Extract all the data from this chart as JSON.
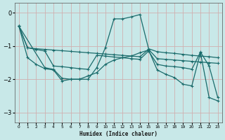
{
  "xlabel": "Humidex (Indice chaleur)",
  "bg_color": "#c8e8e8",
  "line_color": "#1a6b6b",
  "grid_color": "#b0d0d0",
  "xlim": [
    -0.5,
    23.5
  ],
  "ylim": [
    -3.3,
    0.3
  ],
  "yticks": [
    0,
    -1,
    -2,
    -3
  ],
  "xticks": [
    0,
    1,
    2,
    3,
    4,
    5,
    6,
    7,
    8,
    9,
    10,
    11,
    12,
    13,
    14,
    15,
    16,
    17,
    18,
    19,
    20,
    21,
    22,
    23
  ],
  "series1_x": [
    0,
    1,
    2,
    3,
    4,
    5,
    6,
    7,
    8,
    9,
    10,
    11,
    12,
    13,
    14,
    15,
    16,
    17,
    18,
    19,
    20,
    21,
    22,
    23
  ],
  "series1_y": [
    -0.4,
    -1.05,
    -1.08,
    -1.1,
    -1.12,
    -1.14,
    -1.16,
    -1.18,
    -1.2,
    -1.22,
    -1.24,
    -1.26,
    -1.28,
    -1.3,
    -1.32,
    -1.1,
    -1.38,
    -1.4,
    -1.42,
    -1.44,
    -1.46,
    -1.48,
    -1.5,
    -1.52
  ],
  "series2_x": [
    0,
    1,
    2,
    3,
    4,
    5,
    6,
    7,
    8,
    9,
    10,
    11,
    12,
    13,
    14,
    15,
    16,
    17,
    18,
    19,
    20,
    21,
    22,
    23
  ],
  "series2_y": [
    -0.4,
    -1.05,
    -1.1,
    -1.15,
    -1.6,
    -1.62,
    -1.65,
    -1.68,
    -1.7,
    -1.28,
    -1.3,
    -1.33,
    -1.35,
    -1.38,
    -1.4,
    -1.15,
    -1.55,
    -1.6,
    -1.62,
    -1.65,
    -1.7,
    -1.18,
    -1.6,
    -2.55
  ],
  "series3_x": [
    0,
    3,
    4,
    5,
    6,
    7,
    8,
    9,
    10,
    11,
    12,
    13,
    14,
    15,
    16,
    17,
    18,
    19,
    20,
    21,
    22,
    23
  ],
  "series3_y": [
    -0.4,
    -1.65,
    -1.7,
    -1.97,
    -2.0,
    -2.0,
    -2.0,
    -1.65,
    -1.05,
    -0.18,
    -0.18,
    -0.12,
    -0.05,
    -1.08,
    -1.17,
    -1.2,
    -1.22,
    -1.25,
    -1.28,
    -1.3,
    -1.32,
    -1.35
  ],
  "series4_x": [
    0,
    1,
    2,
    3,
    4,
    5,
    6,
    7,
    8,
    9,
    10,
    11,
    12,
    13,
    14,
    15,
    16,
    17,
    18,
    19,
    20,
    21,
    22,
    23
  ],
  "series4_y": [
    -0.4,
    -1.35,
    -1.55,
    -1.68,
    -1.72,
    -2.05,
    -2.0,
    -2.0,
    -1.9,
    -1.8,
    -1.55,
    -1.42,
    -1.35,
    -1.3,
    -1.2,
    -1.12,
    -1.72,
    -1.85,
    -1.95,
    -2.15,
    -2.2,
    -1.2,
    -2.55,
    -2.65
  ]
}
